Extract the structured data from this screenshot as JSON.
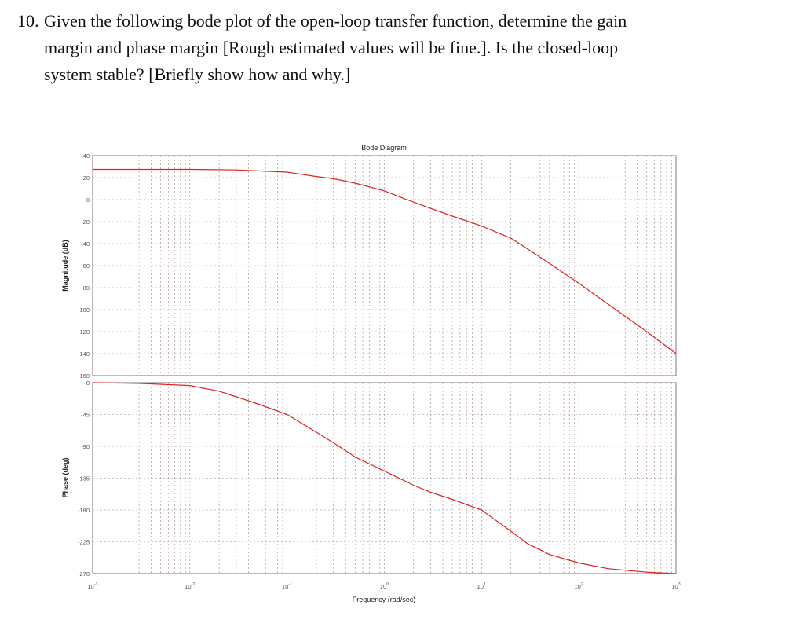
{
  "question": {
    "number": "10.",
    "lines": [
      "Given the following bode plot of the open-loop transfer function, determine the gain",
      "margin and phase margin [Rough estimated values will be fine.]. Is the closed-loop",
      "system stable? [Briefly show how and why.]"
    ]
  },
  "colors": {
    "curve": "#e02020",
    "axes": "#8a7070",
    "grid": "#8a6a6a",
    "tick_label": "#555555"
  },
  "chart_data": {
    "type": "line",
    "title": "Bode Diagram",
    "xlabel": "Frequency  (rad/sec)",
    "xscale": "log",
    "xlim": [
      0.001,
      1000
    ],
    "x_tick_labels": [
      "10^-3",
      "10^-2",
      "10^-1",
      "10^0",
      "10^1",
      "10^2",
      "10^3"
    ],
    "grid": true,
    "subplots": [
      {
        "name": "magnitude",
        "ylabel": "Magnitude (dB)",
        "ylim": [
          -160,
          40
        ],
        "y_ticks": [
          40,
          20,
          0,
          -20,
          -40,
          -60,
          -80,
          -100,
          -120,
          -140,
          -160
        ],
        "series": [
          {
            "name": "Magnitude",
            "x": [
              0.001,
              0.003,
              0.01,
              0.03,
              0.1,
              0.2,
              0.3,
              0.5,
              1,
              1.7,
              3,
              5,
              10,
              20,
              30,
              50,
              100,
              200,
              500,
              1000
            ],
            "values": [
              27.5,
              27.5,
              27.5,
              27,
              25,
              21,
              19,
              15,
              8,
              0,
              -8,
              -15,
              -24,
              -35,
              -45,
              -58,
              -76,
              -95,
              -120,
              -140
            ]
          }
        ]
      },
      {
        "name": "phase",
        "ylabel": "Phase (deg)",
        "ylim": [
          -270,
          0
        ],
        "y_ticks": [
          0,
          -45,
          -90,
          -135,
          -180,
          -225,
          -270
        ],
        "series": [
          {
            "name": "Phase",
            "x": [
              0.001,
              0.003,
              0.01,
              0.02,
              0.03,
              0.05,
              0.1,
              0.2,
              0.3,
              0.5,
              1,
              2,
              3,
              5,
              10,
              20,
              30,
              50,
              100,
              200,
              500,
              1000
            ],
            "values": [
              0,
              -1,
              -4,
              -12,
              -20,
              -30,
              -45,
              -70,
              -85,
              -105,
              -125,
              -145,
              -155,
              -165,
              -180,
              -210,
              -228,
              -243,
              -255,
              -263,
              -268,
              -270
            ]
          }
        ]
      }
    ]
  }
}
